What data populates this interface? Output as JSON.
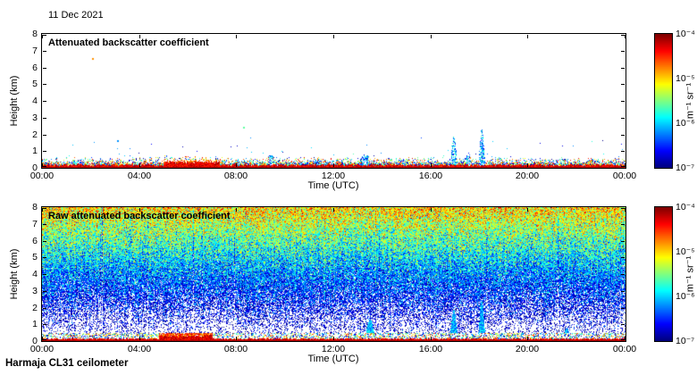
{
  "page": {
    "date_label": "11 Dec 2021",
    "footer_label": "Harmaja CL31 ceilometer"
  },
  "chart_data": [
    {
      "type": "heatmap",
      "title": "Attenuated backscatter coefficient",
      "xlabel": "Time (UTC)",
      "ylabel": "Height (km)",
      "x_range_hours": [
        0,
        24
      ],
      "x_tick_labels": [
        "00:00",
        "04:00",
        "08:00",
        "12:00",
        "16:00",
        "20:00",
        "00:00"
      ],
      "y_range_km": [
        0,
        8
      ],
      "y_tick_labels": [
        "0",
        "1",
        "2",
        "3",
        "4",
        "5",
        "6",
        "7",
        "8"
      ],
      "colorbar": {
        "colormap": "jet",
        "log10_value_range": [
          -7,
          -4
        ],
        "tick_labels": [
          "10⁻⁴",
          "10⁻⁵",
          "10⁻⁶",
          "10⁻⁷"
        ],
        "unit": "m⁻¹ sr⁻¹"
      },
      "content_summary": "Mostly clear air (white) above a strong boundary-layer aerosol signal below about 0.5 km lasting all day; enhanced red-orange returns ~05:00-07:20; narrow plume/cloud echoes near 17:00 (~1.9 km) and 18:05 (~2.4 km).",
      "features": {
        "surface_layer_top_km": 0.5,
        "surface_layer_log10": [
          -4.5,
          -4.1
        ],
        "enhanced_period_hours": [
          5.0,
          7.3
        ],
        "plumes": [
          {
            "hour": 5.9,
            "top_km": 0.7,
            "width_h": 0.5
          },
          {
            "hour": 9.4,
            "top_km": 0.75,
            "width_h": 0.3
          },
          {
            "hour": 13.3,
            "top_km": 0.8,
            "width_h": 0.35
          },
          {
            "hour": 16.95,
            "top_km": 1.9,
            "width_h": 0.12
          },
          {
            "hour": 17.55,
            "top_km": 0.9,
            "width_h": 0.15
          },
          {
            "hour": 18.1,
            "top_km": 2.35,
            "width_h": 0.11
          },
          {
            "hour": 21.5,
            "top_km": 0.6,
            "width_h": 0.3
          }
        ],
        "isolated_dots": [
          {
            "hour": 2.05,
            "km": 6.5,
            "log10": -4.8
          },
          {
            "hour": 8.3,
            "km": 2.4,
            "log10": -5.6
          },
          {
            "hour": 3.1,
            "km": 1.6,
            "log10": -6.2
          }
        ]
      },
      "render": {
        "seed": 20211211
      }
    },
    {
      "type": "heatmap",
      "title": "Raw attenuated backscatter coefficient",
      "xlabel": "Time (UTC)",
      "ylabel": "Height (km)",
      "x_range_hours": [
        0,
        24
      ],
      "x_tick_labels": [
        "00:00",
        "04:00",
        "08:00",
        "12:00",
        "16:00",
        "20:00",
        "00:00"
      ],
      "y_range_km": [
        0,
        8
      ],
      "y_tick_labels": [
        "0",
        "1",
        "2",
        "3",
        "4",
        "5",
        "6",
        "7",
        "8"
      ],
      "colorbar": {
        "colormap": "jet",
        "log10_value_range": [
          -7,
          -4
        ],
        "tick_labels": [
          "10⁻⁴",
          "10⁻⁵",
          "10⁻⁶",
          "10⁻⁷"
        ],
        "unit": "m⁻¹ sr⁻¹"
      },
      "content_summary": "Uncorrected signal dominated by range-dependent noise: yellow-orange speckle 6.5-8 km, green 4.5-6.5 km, blue 2-4.5 km, mostly white 0.8-2 km; strong surface echo below ~0.5 km with the same 05:00-07:00 enhancement and 17:00/18:05 plumes as the filtered panel.",
      "noise_model": {
        "base_log10": -7.5,
        "range_log10": 2.5,
        "exponent": 1.0,
        "sigma": 0.4,
        "white_below_log10": -7,
        "column_streak_probability": 0.015
      },
      "features": {
        "surface_layer_top_km": 0.5,
        "enhanced_period_hours": [
          4.8,
          7.0
        ],
        "plumes": [
          {
            "hour": 13.5,
            "top_km": 1.3,
            "width_h": 0.18
          },
          {
            "hour": 16.95,
            "top_km": 1.9,
            "width_h": 0.13
          },
          {
            "hour": 18.1,
            "top_km": 2.5,
            "width_h": 0.11
          },
          {
            "hour": 21.6,
            "top_km": 0.8,
            "width_h": 0.15
          }
        ]
      },
      "render": {
        "seed": 31122021
      }
    }
  ]
}
